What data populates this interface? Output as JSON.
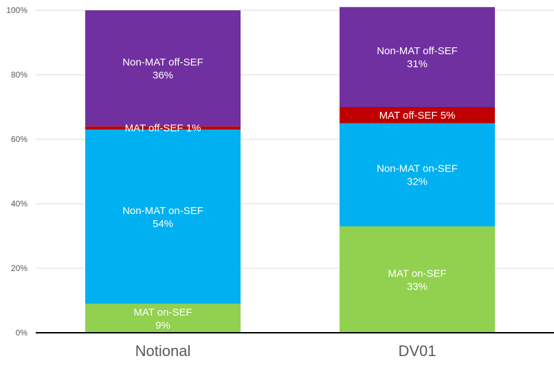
{
  "chart_data": {
    "type": "bar",
    "stacked": true,
    "categories": [
      "Notional",
      "DV01"
    ],
    "series": [
      {
        "name": "MAT on-SEF",
        "values": [
          9,
          33
        ],
        "labels": [
          "9%",
          "33%"
        ],
        "color": "#92d050"
      },
      {
        "name": "Non-MAT on-SEF",
        "values": [
          54,
          32
        ],
        "labels": [
          "54%",
          "32%"
        ],
        "color": "#00b0f0"
      },
      {
        "name": "MAT off-SEF",
        "values": [
          1,
          5
        ],
        "labels": [
          "1%",
          "5%"
        ],
        "color": "#c00000"
      },
      {
        "name": "Non-MAT off-SEF",
        "values": [
          36,
          31
        ],
        "labels": [
          "36%",
          "31%"
        ],
        "color": "#7030a0"
      }
    ],
    "ylim": [
      0,
      100
    ],
    "yticks": [
      "0%",
      "20%",
      "40%",
      "60%",
      "80%",
      "100%"
    ],
    "grid": true,
    "legend": "none",
    "title": "",
    "xlabel": "",
    "ylabel": ""
  }
}
